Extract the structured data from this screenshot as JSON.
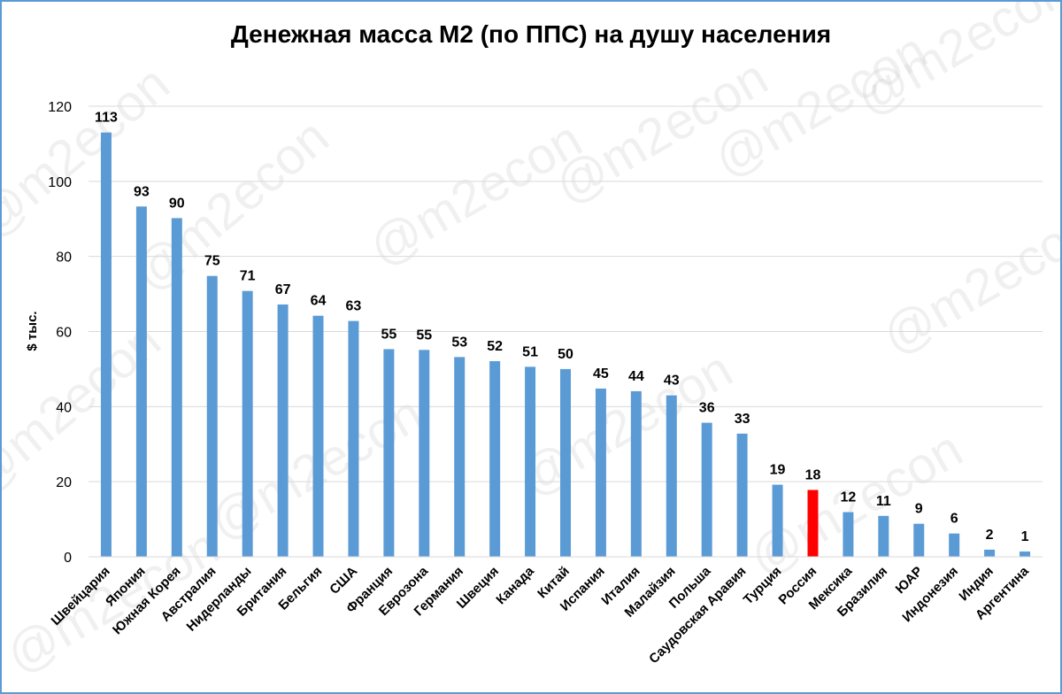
{
  "watermark_text": "@m2econ",
  "colors": {
    "bar": "#5b9bd5",
    "highlight": "#ff0000",
    "grid": "#d9d9d9",
    "frame": "#5b9bd5"
  },
  "chart_data": {
    "type": "bar",
    "title": "Денежная масса М2 (по ППС) на душу населения",
    "ylabel": "$ тыс.",
    "xlabel": "",
    "ylim": [
      0,
      120
    ],
    "yticks": [
      0,
      20,
      40,
      60,
      80,
      100,
      120
    ],
    "grid": true,
    "legend": "none",
    "highlight_category": "Россия",
    "categories": [
      "Швейцария",
      "Япония",
      "Южная Корея",
      "Австралия",
      "Нидерланды",
      "Британия",
      "Бельгия",
      "США",
      "Франция",
      "Еврозона",
      "Германия",
      "Швеция",
      "Канада",
      "Китай",
      "Испания",
      "Италия",
      "Малайзия",
      "Польша",
      "Саудовская Аравия",
      "Турция",
      "Россия",
      "Мексика",
      "Бразилия",
      "ЮАР",
      "Индонезия",
      "Индия",
      "Аргентина"
    ],
    "values": [
      113,
      93.3,
      90.2,
      74.8,
      70.8,
      67.2,
      64.2,
      62.8,
      55.3,
      55.1,
      53.2,
      52.1,
      50.6,
      50.0,
      44.8,
      44.1,
      43.0,
      35.7,
      32.8,
      19.2,
      17.8,
      11.9,
      10.9,
      8.8,
      6.2,
      1.9,
      1.4
    ],
    "labels": [
      "113",
      "93",
      "90",
      "75",
      "71",
      "67",
      "64",
      "63",
      "55",
      "55",
      "53",
      "52",
      "51",
      "50",
      "45",
      "44",
      "43",
      "36",
      "33",
      "19",
      "18",
      "12",
      "11",
      "9",
      "6",
      "2",
      "1"
    ]
  }
}
